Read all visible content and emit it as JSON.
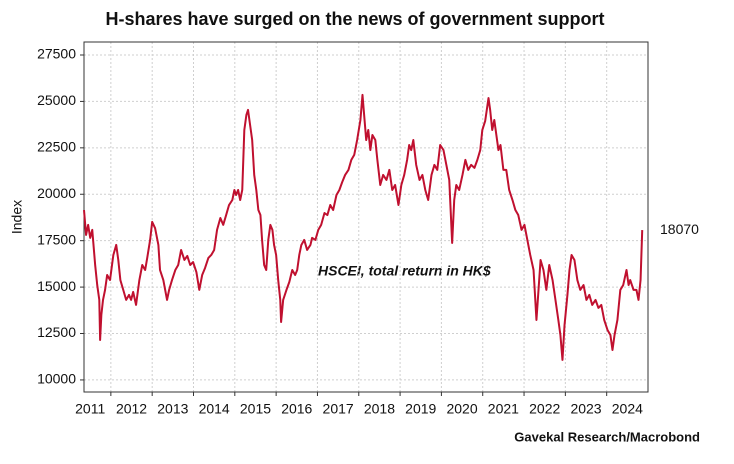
{
  "chart_data": {
    "type": "line",
    "title": "H-shares have surged on the news of government support",
    "y_label": "Index",
    "source": "Gavekal Research/Macrobond",
    "x": [
      2011.35,
      2011.4,
      2011.45,
      2011.5,
      2011.55,
      2011.62,
      2011.67,
      2011.72,
      2011.74,
      2011.77,
      2011.81,
      2011.86,
      2011.91,
      2011.98,
      2012.06,
      2012.13,
      2012.18,
      2012.23,
      2012.3,
      2012.37,
      2012.44,
      2012.49,
      2012.54,
      2012.61,
      2012.69,
      2012.76,
      2012.83,
      2012.88,
      2012.95,
      2013.0,
      2013.07,
      2013.15,
      2013.19,
      2013.27,
      2013.36,
      2013.41,
      2013.48,
      2013.56,
      2013.63,
      2013.7,
      2013.78,
      2013.85,
      2013.92,
      2013.99,
      2014.07,
      2014.14,
      2014.21,
      2014.28,
      2014.36,
      2014.43,
      2014.5,
      2014.57,
      2014.65,
      2014.72,
      2014.79,
      2014.86,
      2014.94,
      2014.99,
      2015.03,
      2015.08,
      2015.13,
      2015.18,
      2015.23,
      2015.28,
      2015.32,
      2015.37,
      2015.42,
      2015.47,
      2015.52,
      2015.57,
      2015.62,
      2015.66,
      2015.71,
      2015.76,
      2015.81,
      2015.86,
      2015.91,
      2015.95,
      2016.0,
      2016.05,
      2016.1,
      2016.12,
      2016.17,
      2016.25,
      2016.32,
      2016.39,
      2016.46,
      2016.51,
      2016.56,
      2016.61,
      2016.68,
      2016.75,
      2016.83,
      2016.87,
      2016.95,
      2017.02,
      2017.09,
      2017.17,
      2017.24,
      2017.31,
      2017.38,
      2017.46,
      2017.53,
      2017.6,
      2017.67,
      2017.75,
      2017.82,
      2017.89,
      2017.96,
      2018.04,
      2018.09,
      2018.13,
      2018.18,
      2018.23,
      2018.28,
      2018.33,
      2018.4,
      2018.45,
      2018.52,
      2018.59,
      2018.67,
      2018.74,
      2018.81,
      2018.88,
      2018.96,
      2019.03,
      2019.1,
      2019.17,
      2019.22,
      2019.27,
      2019.32,
      2019.39,
      2019.47,
      2019.54,
      2019.61,
      2019.68,
      2019.76,
      2019.83,
      2019.9,
      2019.97,
      2020.05,
      2020.12,
      2020.19,
      2020.26,
      2020.31,
      2020.36,
      2020.43,
      2020.51,
      2020.58,
      2020.65,
      2020.72,
      2020.8,
      2020.87,
      2020.94,
      2020.99,
      2021.06,
      2021.14,
      2021.18,
      2021.23,
      2021.28,
      2021.33,
      2021.38,
      2021.43,
      2021.5,
      2021.57,
      2021.64,
      2021.72,
      2021.79,
      2021.86,
      2021.94,
      2022.01,
      2022.08,
      2022.15,
      2022.23,
      2022.3,
      2022.35,
      2022.4,
      2022.47,
      2022.54,
      2022.61,
      2022.69,
      2022.76,
      2022.83,
      2022.88,
      2022.93,
      2022.98,
      2023.05,
      2023.1,
      2023.15,
      2023.22,
      2023.29,
      2023.36,
      2023.44,
      2023.51,
      2023.58,
      2023.65,
      2023.73,
      2023.8,
      2023.87,
      2023.94,
      2024.02,
      2024.09,
      2024.14,
      2024.19,
      2024.26,
      2024.33,
      2024.4,
      2024.48,
      2024.53,
      2024.57,
      2024.65,
      2024.72,
      2024.77,
      2024.82,
      2024.86
    ],
    "series": [
      {
        "name": "HSCEI, total return in HK$",
        "color": "#c0102f",
        "values": [
          19150,
          17810,
          18350,
          17650,
          18080,
          16190,
          15110,
          14310,
          12150,
          13500,
          14310,
          14850,
          15650,
          15380,
          16730,
          17270,
          16460,
          15380,
          14850,
          14310,
          14580,
          14310,
          14740,
          14040,
          15380,
          16190,
          15920,
          16570,
          17540,
          18510,
          18180,
          17270,
          15920,
          15380,
          14310,
          14850,
          15380,
          15920,
          16190,
          17000,
          16460,
          16680,
          16190,
          16350,
          15810,
          14850,
          15650,
          16030,
          16570,
          16730,
          17000,
          18080,
          18720,
          18350,
          18880,
          19420,
          19690,
          20230,
          19960,
          20230,
          19690,
          20230,
          23460,
          24270,
          24540,
          23730,
          22920,
          21040,
          20230,
          19150,
          18880,
          17540,
          16190,
          15920,
          17540,
          18350,
          18080,
          17270,
          16730,
          15380,
          14310,
          13120,
          14310,
          14850,
          15280,
          15920,
          15650,
          15920,
          16730,
          17270,
          17540,
          17000,
          17270,
          17650,
          17540,
          18080,
          18350,
          18990,
          18880,
          19420,
          19150,
          19960,
          20230,
          20660,
          21040,
          21310,
          21850,
          22120,
          22920,
          24000,
          25350,
          24270,
          22920,
          23460,
          22380,
          23190,
          22920,
          21850,
          20500,
          21040,
          20770,
          21310,
          20230,
          20500,
          19420,
          20500,
          21040,
          21850,
          22650,
          22380,
          22920,
          21580,
          20770,
          21040,
          20230,
          19690,
          21040,
          21580,
          21310,
          22650,
          22380,
          21580,
          20770,
          17380,
          19690,
          20500,
          20230,
          21040,
          21850,
          21310,
          21580,
          21420,
          21850,
          22380,
          23460,
          23950,
          25180,
          24540,
          23460,
          24000,
          23190,
          22380,
          22650,
          21310,
          21310,
          20230,
          19690,
          19150,
          18880,
          18080,
          18350,
          17540,
          16730,
          15920,
          13230,
          14850,
          16460,
          15920,
          14850,
          16190,
          15380,
          14310,
          13230,
          12420,
          11080,
          12960,
          14580,
          15920,
          16730,
          16460,
          15380,
          14850,
          15110,
          14310,
          14580,
          14040,
          14310,
          13880,
          14040,
          13230,
          12690,
          12420,
          11610,
          12420,
          13230,
          14850,
          15110,
          15920,
          15110,
          15380,
          14850,
          14850,
          14310,
          15380,
          18070
        ]
      }
    ],
    "xlim": [
      2011.35,
      2025.0
    ],
    "xticks": [
      2011,
      2012,
      2013,
      2014,
      2015,
      2016,
      2017,
      2018,
      2019,
      2020,
      2021,
      2022,
      2023,
      2024
    ],
    "ylim": [
      9350,
      28200
    ],
    "yticks": [
      10000,
      12500,
      15000,
      17500,
      20000,
      22500,
      25000,
      27500
    ],
    "grid": true
  }
}
